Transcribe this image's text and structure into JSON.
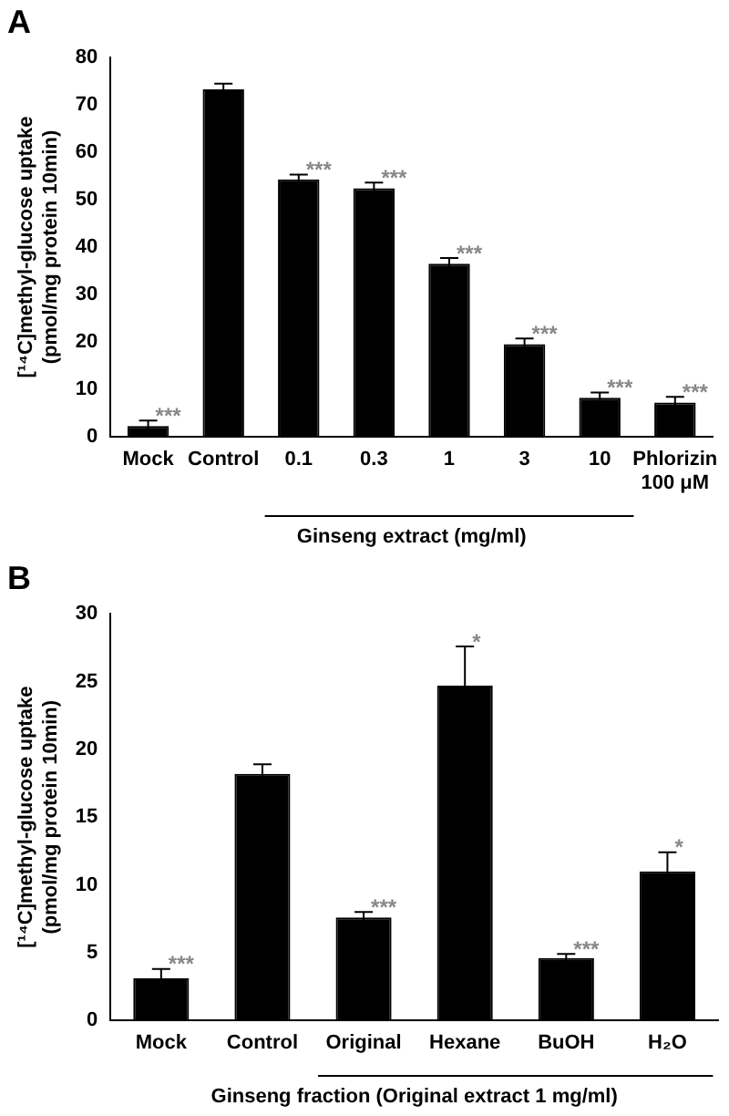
{
  "chart_data": [
    {
      "type": "bar",
      "title": "A",
      "xlabel": "Ginseng extract (mg/ml)",
      "ylabel": "[¹⁴C]methyl-glucose uptake (pmol/mg protein 10min)",
      "categories": [
        "Mock",
        "Control",
        "0.1",
        "0.3",
        "1",
        "3",
        "10",
        "Phlorizin 100 μM"
      ],
      "values": [
        2.2,
        73.3,
        54.3,
        52.4,
        36.5,
        19.5,
        8.2,
        7.2
      ],
      "errors": [
        1.2,
        1.2,
        1,
        1.2,
        1.2,
        1.2,
        1.1,
        1.2
      ],
      "color": "#000000",
      "ylim": [
        0,
        80
      ],
      "yticks": [
        0,
        10,
        20,
        30,
        40,
        50,
        60,
        70,
        80
      ],
      "grid": false,
      "legend": false,
      "annotations": [
        {
          "text": "***",
          "x": "Mock",
          "y": 3.4
        },
        {
          "text": "***",
          "x": "0.1",
          "y": 55.3
        },
        {
          "text": "***",
          "x": "0.3",
          "y": 53.6
        },
        {
          "text": "***",
          "x": "1",
          "y": 37.7
        },
        {
          "text": "***",
          "x": "3",
          "y": 20.7
        },
        {
          "text": "***",
          "x": "10",
          "y": 9.3
        },
        {
          "text": "***",
          "x": "Phlorizin 100 μM",
          "y": 8.4
        }
      ]
    },
    {
      "type": "bar",
      "title": "B",
      "xlabel": "Ginseng fraction (Original extract 1 mg/ml)",
      "ylabel": "[¹⁴C]methyl-glucose uptake (pmol/mg protein 10min)",
      "categories": [
        "Mock",
        "Control",
        "Original",
        "Hexane",
        "BuOH",
        "H₂O"
      ],
      "values": [
        3.1,
        18.2,
        7.6,
        24.7,
        4.6,
        11.0
      ],
      "errors": [
        0.7,
        0.7,
        0.4,
        2.9,
        0.3,
        1.4
      ],
      "color": "#000000",
      "ylim": [
        0,
        30
      ],
      "yticks": [
        0,
        5,
        10,
        15,
        20,
        25,
        30
      ],
      "grid": false,
      "legend": false,
      "annotations": [
        {
          "text": "***",
          "x": "Mock",
          "y": 3.8
        },
        {
          "text": "***",
          "x": "Original",
          "y": 8.0
        },
        {
          "text": "*",
          "x": "Hexane",
          "y": 27.6
        },
        {
          "text": "***",
          "x": "BuOH",
          "y": 4.9
        },
        {
          "text": "*",
          "x": "H₂O",
          "y": 12.4
        }
      ]
    }
  ]
}
